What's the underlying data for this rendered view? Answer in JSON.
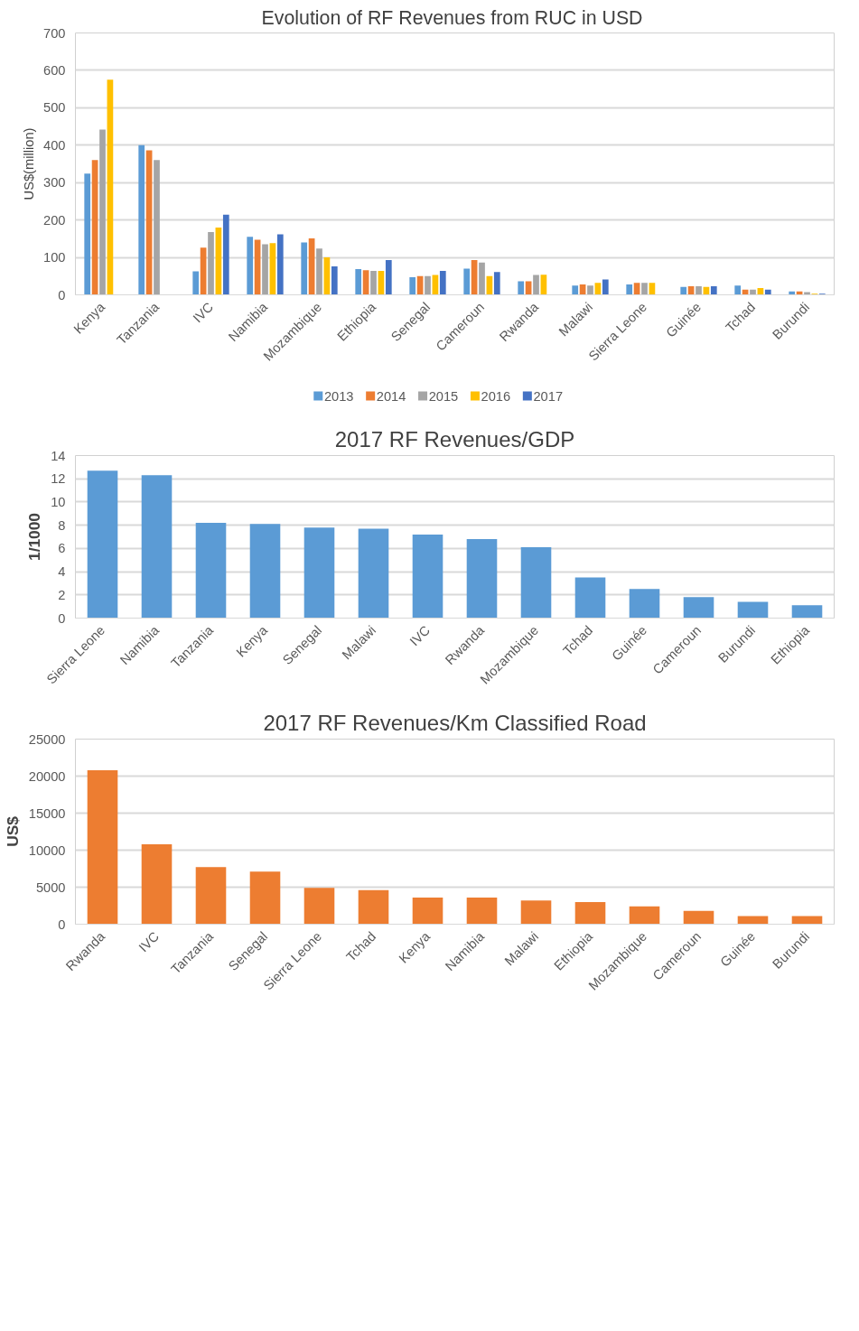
{
  "chart_data": [
    {
      "type": "bar",
      "title": "Evolution of RF Revenues  from RUC in USD",
      "ylabel": "US$(million)",
      "categories": [
        "Kenya",
        "Tanzania",
        "IVC",
        "Namibia",
        "Mozambique",
        "Ethiopia",
        "Senegal",
        "Cameroun",
        "Rwanda",
        "Malawi",
        "Sierra Leone",
        "Guinée",
        "Tchad",
        "Burundi"
      ],
      "series": [
        {
          "name": "2013",
          "color": "#5b9bd5",
          "values": [
            324,
            400,
            63,
            155,
            140,
            69,
            47,
            70,
            36,
            25,
            28,
            21,
            25,
            9
          ]
        },
        {
          "name": "2014",
          "color": "#ed7d31",
          "values": [
            360,
            386,
            126,
            147,
            151,
            66,
            50,
            93,
            36,
            28,
            32,
            23,
            14,
            9
          ]
        },
        {
          "name": "2015",
          "color": "#a5a5a5",
          "values": [
            442,
            360,
            168,
            135,
            124,
            64,
            50,
            86,
            53,
            25,
            32,
            23,
            14,
            7
          ]
        },
        {
          "name": "2016",
          "color": "#ffc000",
          "values": [
            575,
            null,
            180,
            138,
            100,
            64,
            53,
            50,
            54,
            32,
            32,
            21,
            18,
            3
          ]
        },
        {
          "name": "2017",
          "color": "#4472c4",
          "values": [
            null,
            null,
            214,
            162,
            76,
            93,
            64,
            61,
            null,
            41,
            null,
            23,
            14,
            3
          ]
        }
      ],
      "ylim": [
        0,
        700
      ],
      "yticks": [
        0,
        100,
        200,
        300,
        400,
        500,
        600,
        700
      ],
      "grid": "y",
      "legend": "bottom"
    },
    {
      "type": "bar",
      "title": "2017 RF Revenues/GDP",
      "ylabel": "1/1000",
      "categories": [
        "Sierra Leone",
        "Namibia",
        "Tanzania",
        "Kenya",
        "Senegal",
        "Malawi",
        "IVC",
        "Rwanda",
        "Mozambique",
        "Tchad",
        "Guinée",
        "Cameroun",
        "Burundi",
        "Ethiopia"
      ],
      "series": [
        {
          "color": "#5b9bd5",
          "values": [
            12.7,
            12.3,
            8.2,
            8.1,
            7.8,
            7.7,
            7.2,
            6.8,
            6.1,
            3.5,
            2.5,
            1.8,
            1.4,
            1.1
          ]
        }
      ],
      "ylim": [
        0,
        14
      ],
      "yticks": [
        0,
        2,
        4,
        6,
        8,
        10,
        12,
        14
      ],
      "grid": "y"
    },
    {
      "type": "bar",
      "title": "2017 RF Revenues/Km Classified Road",
      "ylabel": "US$",
      "categories": [
        "Rwanda",
        "IVC",
        "Tanzania",
        "Senegal",
        "Sierra Leone",
        "Tchad",
        "Kenya",
        "Namibia",
        "Malawi",
        "Ethiopia",
        "Mozambique",
        "Cameroun",
        "Guinée",
        "Burundi"
      ],
      "series": [
        {
          "color": "#ed7d31",
          "values": [
            20800,
            10800,
            7700,
            7100,
            4900,
            4600,
            3600,
            3600,
            3200,
            3000,
            2400,
            1800,
            1100,
            1100
          ]
        }
      ],
      "ylim": [
        0,
        25000
      ],
      "yticks": [
        0,
        5000,
        10000,
        15000,
        20000,
        25000
      ],
      "grid": "y"
    }
  ]
}
